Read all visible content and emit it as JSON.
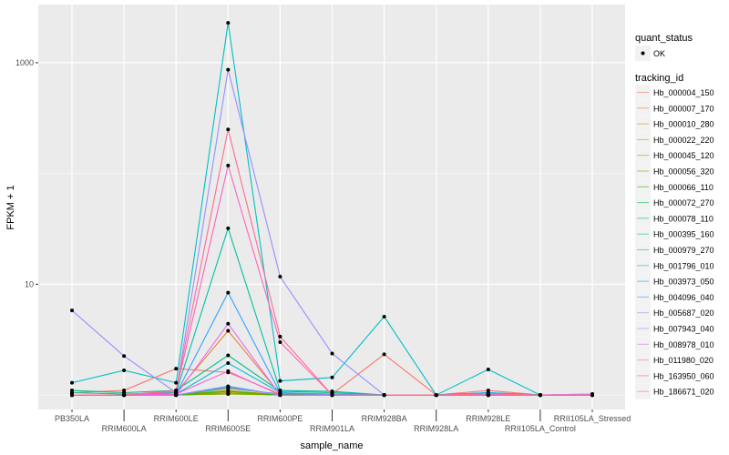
{
  "chart_data": {
    "type": "line",
    "xlabel": "sample_name",
    "ylabel": "FPKM + 1",
    "yscale": "log10",
    "ylim": [
      0.74,
      3350
    ],
    "yticks": [
      10,
      1000
    ],
    "ytick_labels": [
      "10",
      "1000"
    ],
    "grid": true,
    "legend_position": "right",
    "categories": [
      "PB350LA",
      "RRIM600LA",
      "RRIM600LE",
      "RRIM600SE",
      "RRIM600PE",
      "RRIM901LA",
      "RRIM928BA",
      "RRIM928LA",
      "RRIM928LE",
      "RRII105LA_Control",
      "RRII105LA_Stressed"
    ],
    "shape_legend": {
      "title": "quant_status",
      "items": [
        "OK"
      ]
    },
    "color_legend_title": "tracking_id",
    "series": [
      {
        "name": "Hb_000004_150",
        "color": "#F8766D",
        "values": [
          1.05,
          1.1,
          1.73,
          1.6,
          1.02,
          1.02,
          2.33,
          1,
          1.1,
          1,
          1
        ]
      },
      {
        "name": "Hb_000007_170",
        "color": "#EA8331",
        "values": [
          1,
          1,
          1.05,
          3.8,
          1.02,
          1,
          1,
          1,
          1,
          1,
          1
        ]
      },
      {
        "name": "Hb_000010_280",
        "color": "#D89000",
        "values": [
          1,
          1,
          1,
          1.1,
          1,
          1,
          1,
          1,
          1,
          1,
          1
        ]
      },
      {
        "name": "Hb_000022_220",
        "color": "#C09B00",
        "values": [
          1,
          1,
          1,
          1.05,
          1,
          1,
          1,
          1,
          1,
          1,
          1
        ]
      },
      {
        "name": "Hb_000045_120",
        "color": "#A3A500",
        "values": [
          1,
          1,
          1,
          1.02,
          1,
          1,
          1,
          1,
          1,
          1,
          1
        ]
      },
      {
        "name": "Hb_000056_320",
        "color": "#7CAE00",
        "values": [
          1,
          1,
          1,
          1.03,
          1,
          1,
          1,
          1,
          1,
          1,
          1
        ]
      },
      {
        "name": "Hb_000066_110",
        "color": "#39B600",
        "values": [
          1,
          1,
          1,
          1.08,
          1,
          1,
          1,
          1,
          1,
          1,
          1
        ]
      },
      {
        "name": "Hb_000072_270",
        "color": "#00BB4E",
        "values": [
          1,
          1,
          1,
          1.15,
          1.02,
          1,
          1,
          1,
          1,
          1,
          1
        ]
      },
      {
        "name": "Hb_000078_110",
        "color": "#00BF7D",
        "values": [
          1.1,
          1.05,
          1.1,
          2.28,
          1.08,
          1.05,
          1,
          1,
          1.05,
          1,
          1
        ]
      },
      {
        "name": "Hb_000395_160",
        "color": "#00C1A3",
        "values": [
          1.05,
          1.02,
          1.05,
          32,
          1.1,
          1.08,
          1,
          1,
          1,
          1,
          1
        ]
      },
      {
        "name": "Hb_000979_270",
        "color": "#00BFC4",
        "values": [
          1.29,
          1.67,
          1.29,
          2290,
          1.34,
          1.44,
          5.1,
          1,
          1.7,
          1,
          1
        ]
      },
      {
        "name": "Hb_001796_010",
        "color": "#00BAE0",
        "values": [
          1,
          1,
          1.02,
          1.94,
          1.05,
          1,
          1,
          1,
          1,
          1,
          1
        ]
      },
      {
        "name": "Hb_003973_050",
        "color": "#00B0F6",
        "values": [
          1,
          1,
          1,
          1.2,
          1,
          1,
          1,
          1,
          1.05,
          1,
          1
        ]
      },
      {
        "name": "Hb_004096_040",
        "color": "#35A2FF",
        "values": [
          1,
          1,
          1.02,
          8.4,
          1.05,
          1.02,
          1,
          1,
          1.02,
          1,
          1
        ]
      },
      {
        "name": "Hb_005687_020",
        "color": "#9590FF",
        "values": [
          5.8,
          2.25,
          1.05,
          865,
          11.7,
          2.37,
          1,
          1,
          1,
          1,
          1.02
        ]
      },
      {
        "name": "Hb_007943_040",
        "color": "#C77CFF",
        "values": [
          1,
          1,
          1,
          1.18,
          1,
          1,
          1,
          1,
          1,
          1,
          1.02
        ]
      },
      {
        "name": "Hb_008978_010",
        "color": "#E76BF3",
        "values": [
          1,
          1,
          1,
          4.4,
          1,
          1,
          1,
          1,
          1,
          1,
          1
        ]
      },
      {
        "name": "Hb_011980_020",
        "color": "#FA62DB",
        "values": [
          1,
          1,
          1.02,
          1.64,
          1,
          1,
          1,
          1,
          1,
          1,
          1
        ]
      },
      {
        "name": "Hb_163950_060",
        "color": "#FF62BC",
        "values": [
          1,
          1,
          1.08,
          118,
          3.0,
          1,
          1,
          1,
          1,
          1,
          1
        ]
      },
      {
        "name": "Hb_186671_020",
        "color": "#FF6C91",
        "values": [
          1,
          1,
          1.1,
          250,
          3.37,
          1,
          1,
          1,
          1.03,
          1,
          1
        ]
      }
    ]
  }
}
